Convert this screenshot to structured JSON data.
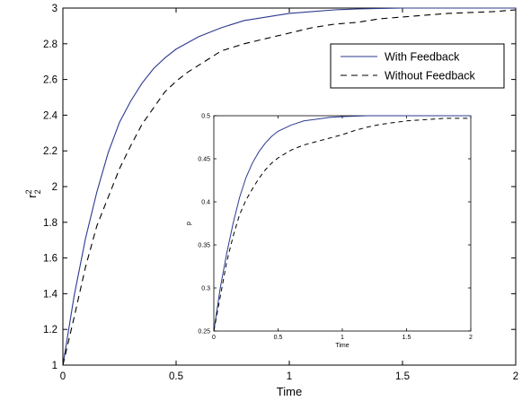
{
  "chart_data": [
    {
      "type": "line",
      "xlabel": "Time",
      "ylabel": "r",
      "ylabel_superscript": "2",
      "ylabel_subscript": "2",
      "xlim": [
        0,
        2
      ],
      "ylim": [
        1,
        3
      ],
      "xticks": [
        0,
        0.5,
        1,
        1.5,
        2
      ],
      "xtick_labels": [
        "0",
        "0.5",
        "1",
        "1.5",
        "2"
      ],
      "yticks": [
        1,
        1.2,
        1.4,
        1.6,
        1.8,
        2,
        2.2,
        2.4,
        2.6,
        2.8,
        3
      ],
      "ytick_labels": [
        "1",
        "1.2",
        "1.4",
        "1.6",
        "1.8",
        "2",
        "2.2",
        "2.4",
        "2.6",
        "2.8",
        "3"
      ],
      "grid": false,
      "legend_position": "top-right",
      "series": [
        {
          "name": "With Feedback",
          "style": "solid",
          "color": "#2b3a8f",
          "x": [
            0,
            0.05,
            0.1,
            0.15,
            0.2,
            0.25,
            0.3,
            0.35,
            0.4,
            0.45,
            0.5,
            0.6,
            0.7,
            0.8,
            0.9,
            1.0,
            1.1,
            1.2,
            1.3,
            1.4,
            1.5,
            1.6,
            1.7,
            1.8,
            2.0
          ],
          "y": [
            1.0,
            1.39,
            1.71,
            1.97,
            2.19,
            2.36,
            2.48,
            2.58,
            2.66,
            2.72,
            2.77,
            2.84,
            2.89,
            2.93,
            2.95,
            2.97,
            2.98,
            2.99,
            2.995,
            2.998,
            3.0,
            3.0,
            3.0,
            3.0,
            3.0
          ]
        },
        {
          "name": "Without Feedback",
          "style": "dashed",
          "color": "#000000",
          "x": [
            0,
            0.05,
            0.1,
            0.15,
            0.2,
            0.25,
            0.3,
            0.35,
            0.4,
            0.45,
            0.5,
            0.55,
            0.6,
            0.7,
            0.8,
            0.9,
            1.0,
            1.1,
            1.2,
            1.3,
            1.4,
            1.5,
            1.6,
            1.7,
            1.8,
            1.9,
            2.0
          ],
          "y": [
            1.0,
            1.27,
            1.55,
            1.78,
            1.94,
            2.1,
            2.23,
            2.35,
            2.44,
            2.53,
            2.59,
            2.64,
            2.68,
            2.76,
            2.8,
            2.83,
            2.86,
            2.89,
            2.91,
            2.92,
            2.94,
            2.95,
            2.96,
            2.97,
            2.975,
            2.98,
            2.99
          ]
        }
      ]
    },
    {
      "type": "line",
      "xlabel": "Time",
      "ylabel": "p",
      "xlim": [
        0,
        2
      ],
      "ylim": [
        0.25,
        0.5
      ],
      "xticks": [
        0,
        0.5,
        1,
        1.5,
        2
      ],
      "xtick_labels": [
        "0",
        "0.5",
        "1",
        "1.5",
        "2"
      ],
      "yticks": [
        0.25,
        0.3,
        0.35,
        0.4,
        0.45,
        0.5
      ],
      "ytick_labels": [
        "0.25",
        "0.3",
        "0.35",
        "0.4",
        "0.45",
        "0.5"
      ],
      "grid": false,
      "series": [
        {
          "style": "solid",
          "color": "#2b3a8f",
          "x": [
            0,
            0.05,
            0.1,
            0.15,
            0.2,
            0.25,
            0.3,
            0.35,
            0.4,
            0.45,
            0.5,
            0.6,
            0.7,
            0.8,
            0.9,
            1.0,
            1.1,
            1.2,
            1.3,
            1.5,
            1.7,
            2.0
          ],
          "y": [
            0.25,
            0.3,
            0.34,
            0.375,
            0.405,
            0.428,
            0.445,
            0.458,
            0.468,
            0.476,
            0.482,
            0.489,
            0.494,
            0.496,
            0.498,
            0.499,
            0.4995,
            0.5,
            0.5,
            0.5,
            0.5,
            0.5
          ]
        },
        {
          "style": "dashed",
          "color": "#000000",
          "x": [
            0,
            0.05,
            0.1,
            0.15,
            0.2,
            0.25,
            0.3,
            0.35,
            0.4,
            0.45,
            0.5,
            0.6,
            0.7,
            0.8,
            0.9,
            1.0,
            1.1,
            1.2,
            1.3,
            1.4,
            1.5,
            1.6,
            1.7,
            1.8,
            1.9,
            2.0
          ],
          "y": [
            0.25,
            0.29,
            0.33,
            0.36,
            0.385,
            0.402,
            0.415,
            0.427,
            0.437,
            0.445,
            0.451,
            0.46,
            0.466,
            0.47,
            0.474,
            0.478,
            0.483,
            0.487,
            0.49,
            0.492,
            0.494,
            0.495,
            0.496,
            0.497,
            0.497,
            0.497
          ]
        }
      ]
    }
  ]
}
